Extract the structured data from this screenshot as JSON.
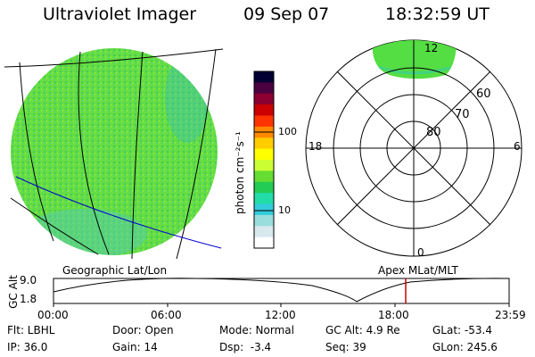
{
  "header": {
    "title": "Ultraviolet Imager",
    "date": "09 Sep 07",
    "time": "18:32:59 UT"
  },
  "globe": {
    "caption": "Geographic Lat/Lon"
  },
  "colorbar": {
    "label": "photon cm⁻²s⁻¹",
    "ticks": [
      "100",
      "10"
    ],
    "colors": [
      "#000033",
      "#4b0040",
      "#8b0030",
      "#cc0000",
      "#ff3300",
      "#ff8800",
      "#ffcc00",
      "#ffff00",
      "#ccff33",
      "#66dd33",
      "#22cc55",
      "#22ddaa",
      "#33ccdd",
      "#99dddd",
      "#d8e8ec",
      "#ffffff"
    ]
  },
  "polar": {
    "caption": "Apex MLat/MLT",
    "mlt_labels": {
      "top": "12",
      "left": "18",
      "right": "6",
      "bottom": "0"
    },
    "lat_labels": [
      "60",
      "70",
      "80"
    ]
  },
  "timeline": {
    "axis_label": "GC Alt",
    "y_ticks": [
      "9.0",
      "1.8"
    ],
    "x_ticks": [
      "00:00",
      "06:00",
      "12:00",
      "18:00",
      "23:59"
    ],
    "current_time_fraction": 0.773
  },
  "info": {
    "col1": [
      "Flt: LBHL",
      "IP: 36.0"
    ],
    "col2": [
      "Door: Open",
      "Gain: 14"
    ],
    "col3": [
      "Mode: Normal",
      "Dsp:  -3.4"
    ],
    "col4": [
      "GC Alt: 4.9 Re",
      "Seq: 39"
    ],
    "col5": [
      "GLat: -53.4",
      "GLon: 245.6"
    ]
  },
  "colors": {
    "aurora_green": "#55dd44",
    "marker_red": "#cc0000",
    "track_blue": "#0000cc"
  }
}
